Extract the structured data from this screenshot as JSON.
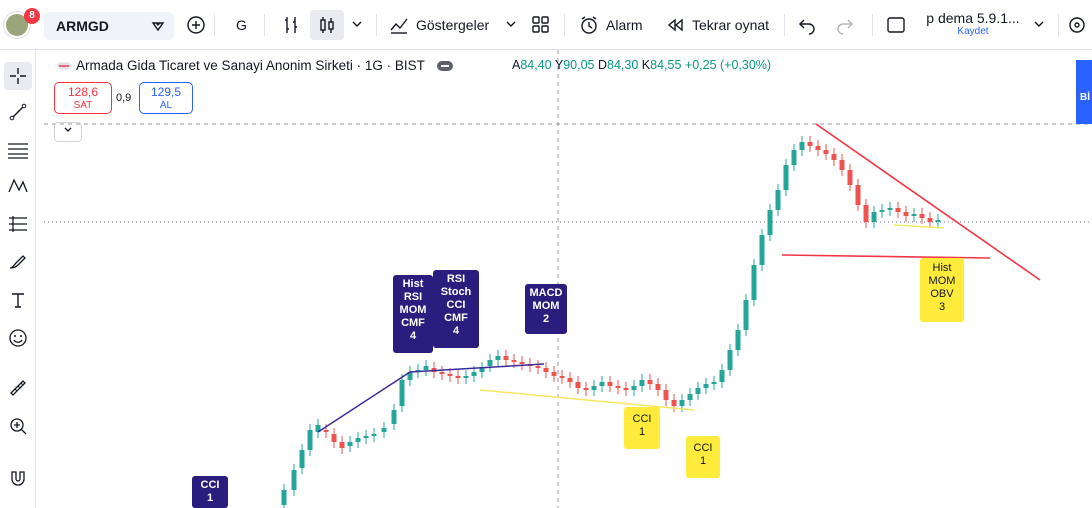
{
  "topbar": {
    "avatar_badge": "8",
    "symbol": "ARMGD",
    "interval": "G",
    "indicators_label": "Göstergeler",
    "alarm_label": "Alarm",
    "replay_label": "Tekrar oynat",
    "layout_name": "p dema 5.9.1...",
    "save_label": "Kaydet"
  },
  "legend": {
    "title": "Armada Gida Ticaret ve Sanayi Anonim Sirketi · 1G · BIST",
    "o_key": "A",
    "o_val": "84,40",
    "h_key": "Y",
    "h_val": "90,05",
    "l_key": "D",
    "l_val": "84,30",
    "c_key": "K",
    "c_val": "84,55",
    "change": "+0,25 (+0,30%)"
  },
  "trade": {
    "sell_price": "128,6",
    "sell_label": "SAT",
    "spread": "0,9",
    "buy_price": "129,5",
    "buy_label": "AL"
  },
  "right_panel_text": "Bİ",
  "labels": {
    "l1": [
      "Hist",
      "RSI",
      "MOM",
      "CMF",
      "4"
    ],
    "l2": [
      "RSI",
      "Stoch",
      "CCI",
      "CMF",
      "4"
    ],
    "l3": [
      "MACD",
      "MOM",
      "2"
    ],
    "l4": [
      "CCI",
      "1"
    ],
    "l5": [
      "CCI",
      "1"
    ],
    "l6": [
      "CCI",
      "1"
    ],
    "l7": [
      "Hist",
      "MOM",
      "OBV",
      "3"
    ]
  },
  "colors": {
    "up": "#26a69a",
    "down": "#ef5350",
    "navy_line": "#3b2a9a",
    "yellow_line": "#f5e663",
    "red_line": "#f23645"
  }
}
